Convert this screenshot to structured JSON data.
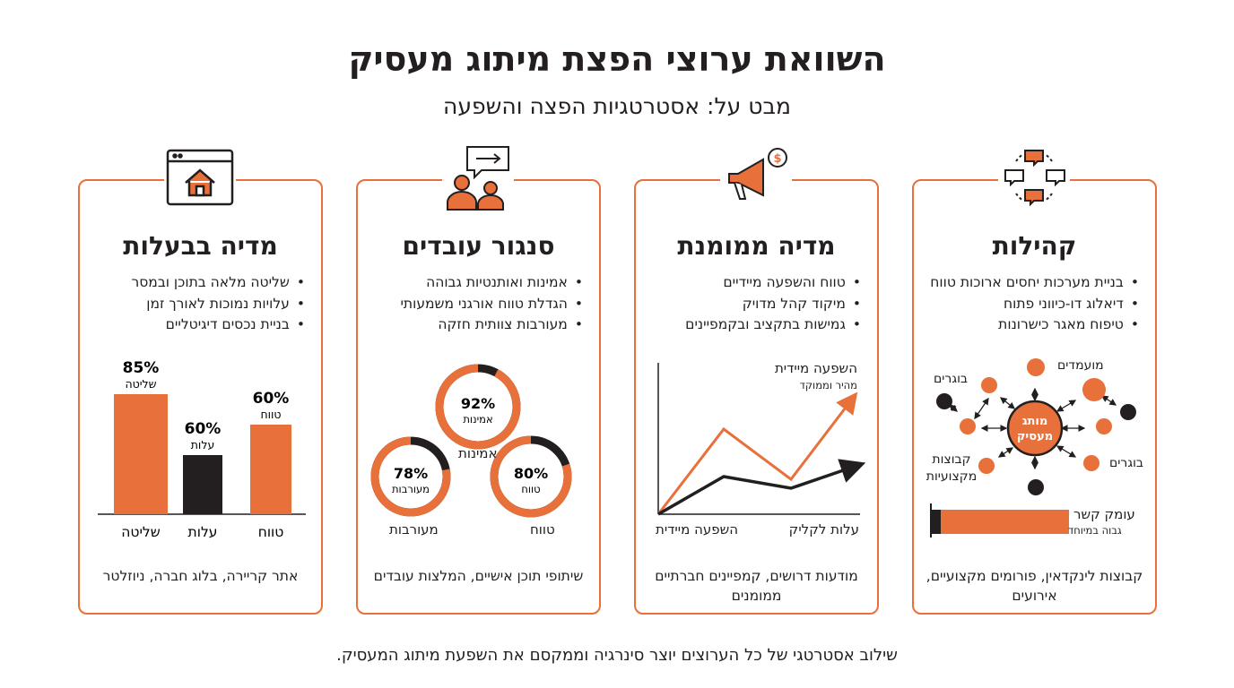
{
  "title": "השוואת ערוצי הפצת מיתוג מעסיק",
  "subtitle": "מבט על: אסטרטגיות הפצה והשפעה",
  "colors": {
    "accent": "#e8703a",
    "dark": "#231f20"
  },
  "cards": [
    {
      "title": "קהילות",
      "icon": "chat-network-icon",
      "bullets": [
        "בניית מערכות יחסים ארוכות טווח",
        "דיאלוג דו-כיווני פתוח",
        "טיפוח מאגר כישרונות"
      ],
      "network": {
        "center": "מותג מעסיק",
        "labels": [
          "מועמדים",
          "בוגרים",
          "בוגרים",
          "קבוצות מקצועיות"
        ]
      },
      "depth": {
        "label": "עומק קשר",
        "sub": "גבוה במיוחד",
        "value": 0.95
      },
      "footer": "קבוצות לינקדאין, פורומים מקצועיים, אירועים"
    },
    {
      "title": "מדיה ממומנת",
      "icon": "megaphone-dollar-icon",
      "bullets": [
        "טווח והשפעה מיידיים",
        "מיקוד קהל מדויק",
        "גמישות בתקציב ובקמפיינים"
      ],
      "line": {
        "annot": "השפעה מיידית",
        "annot_sub": "מהיר וממוקד",
        "x_left": "השפעה מיידית",
        "x_right": "עלות לקליק"
      },
      "footer": "מודעות דרושים, קמפיינים חברתיים ממומנים"
    },
    {
      "title": "סנגור עובדים",
      "icon": "people-message-icon",
      "bullets": [
        "אמינות ואותנטיות גבוהה",
        "הגדלת טווח אורגני משמעותי",
        "מעורבות צוותית חזקה"
      ],
      "donuts": [
        {
          "value": 92,
          "pct": "92%",
          "label": "אמינות"
        },
        {
          "value": 80,
          "pct": "80%",
          "label": "טווח"
        },
        {
          "value": 78,
          "pct": "78%",
          "label": "מעורבות"
        }
      ],
      "donut_center_label": "אמינות",
      "axis_right": "טווח",
      "axis_left": "מעורבות",
      "footer": "שיתופי תוכן אישיים, המלצות עובדים"
    },
    {
      "title": "מדיה בבעלות",
      "icon": "website-home-icon",
      "bullets": [
        "שליטה מלאה בתוכן ובמסר",
        "עלויות נמוכות לאורך זמן",
        "בניית נכסים דיגיטליים"
      ],
      "footer": "אתר קריירה, בלוג חברה, ניוזלטר"
    }
  ],
  "chart_data": {
    "type": "bar",
    "categories": [
      "שליטה",
      "עלות",
      "טווח"
    ],
    "values": [
      85,
      60,
      60
    ],
    "value_labels": [
      "85%",
      "60%",
      "60%"
    ],
    "bar_labels": [
      "שליטה",
      "עלות",
      "טווח"
    ],
    "colors": [
      "#e8703a",
      "#231f20",
      "#e8703a"
    ]
  },
  "footer": "שילוב אסטרטגי של כל הערוצים יוצר סינרגיה וממקסם את השפעת מיתוג המעסיק."
}
